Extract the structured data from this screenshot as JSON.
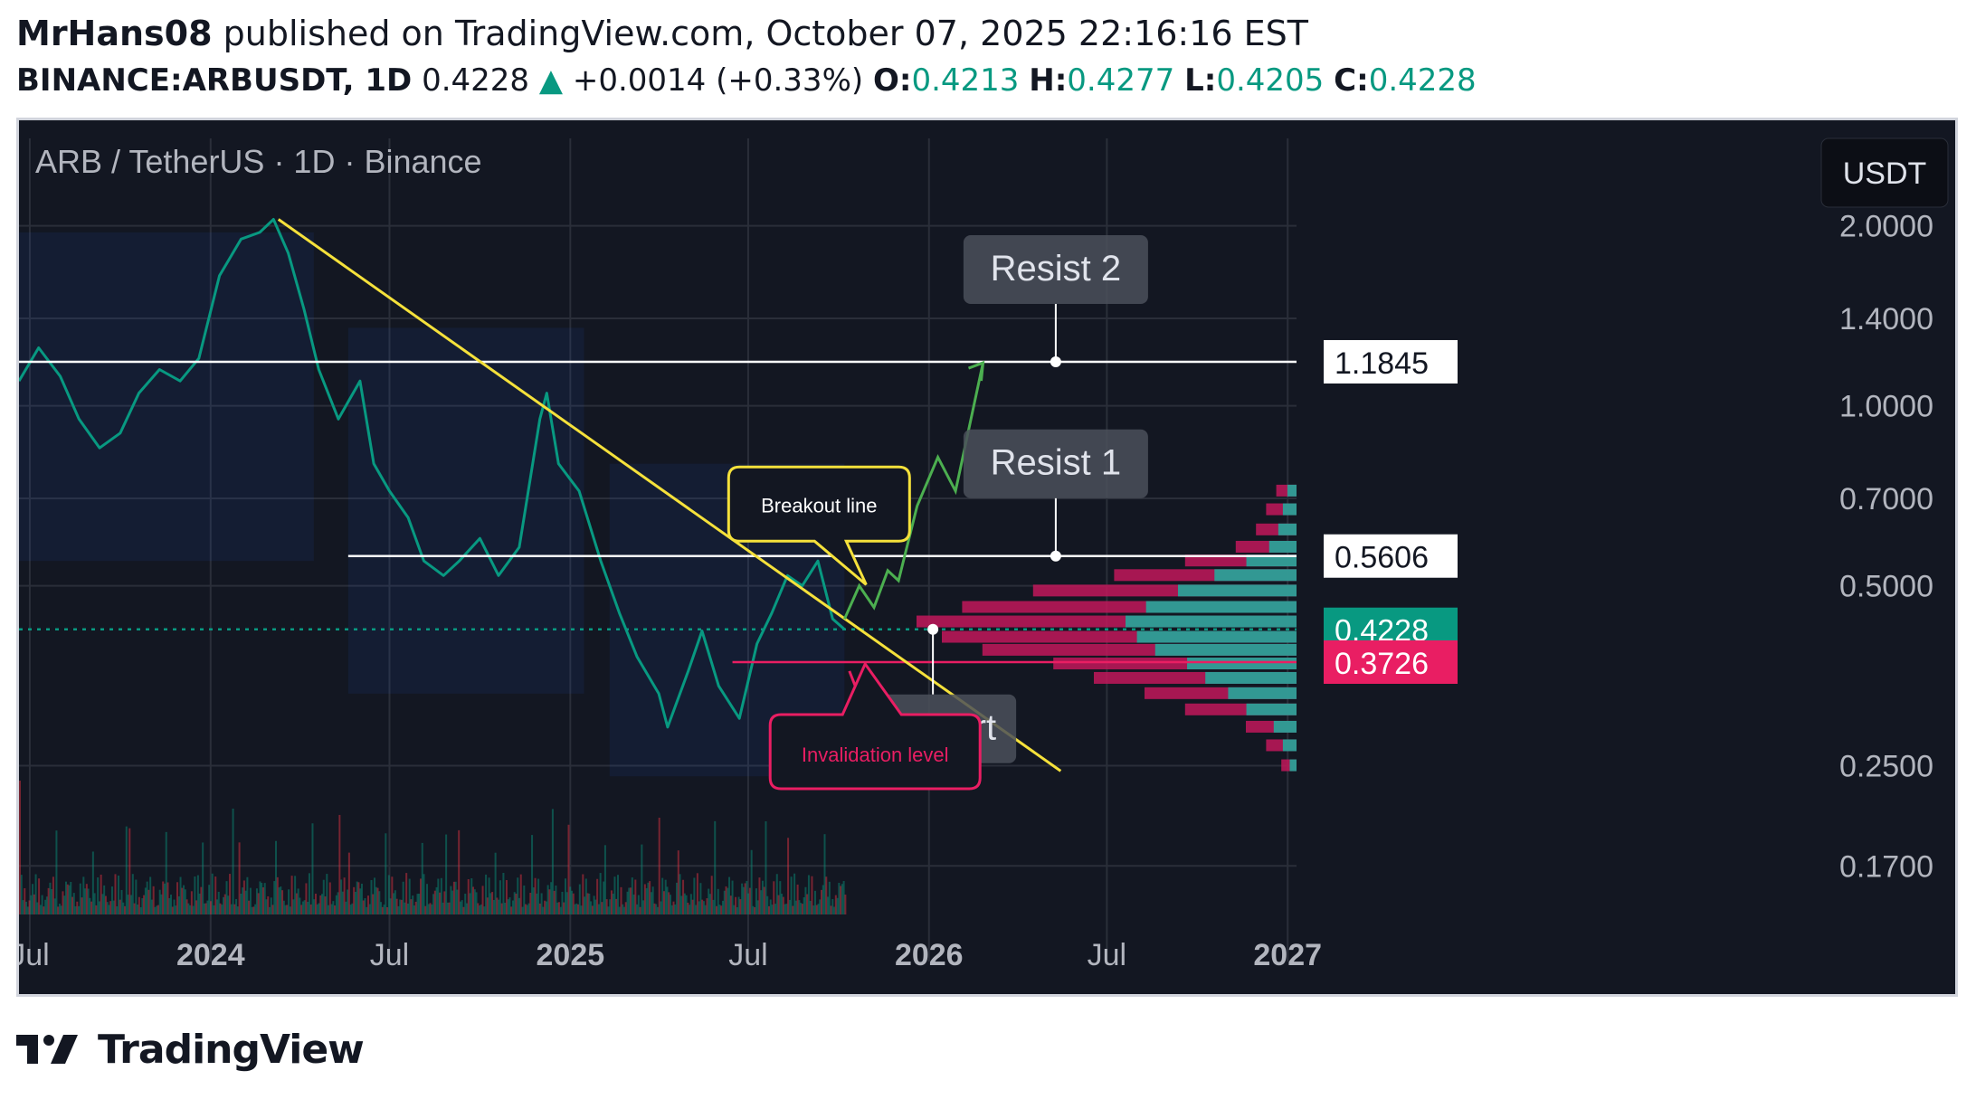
{
  "header": {
    "author": "MrHans08",
    "published_text": "published on TradingView.com, October 07, 2025 22:16:16 EST",
    "symbol": "BINANCE:ARBUSDT, 1D",
    "last": "0.4228",
    "change": "+0.0014 (+0.33%)",
    "open_label": "O:",
    "open": "0.4213",
    "high_label": "H:",
    "high": "0.4277",
    "low_label": "L:",
    "low": "0.4205",
    "close_label": "C:",
    "close": "0.4228"
  },
  "footer": {
    "brand": "TradingView"
  },
  "colors": {
    "background": "#131722",
    "up": "#089981",
    "down": "#f23645",
    "trendline": "#f5e13b",
    "projection": "#4caf50",
    "invalidation": "#e91e63",
    "profile_up": "#26a69a",
    "profile_down": "#c2185b"
  },
  "chart_data": {
    "type": "line",
    "title": "ARB / TetherUS · 1D · Binance",
    "currency": "USDT",
    "y_scale": "log",
    "ylim": [
      0.14,
      2.8
    ],
    "xlim": [
      "2023-06-20",
      "2027-01-10"
    ],
    "x_tick_labels": [
      {
        "date": "2023-07-01",
        "label": "Jul",
        "bold": false
      },
      {
        "date": "2024-01-01",
        "label": "2024",
        "bold": true
      },
      {
        "date": "2024-07-01",
        "label": "Jul",
        "bold": false
      },
      {
        "date": "2025-01-01",
        "label": "2025",
        "bold": true
      },
      {
        "date": "2025-07-01",
        "label": "Jul",
        "bold": false
      },
      {
        "date": "2026-01-01",
        "label": "2026",
        "bold": true
      },
      {
        "date": "2026-07-01",
        "label": "Jul",
        "bold": false
      },
      {
        "date": "2027-01-01",
        "label": "2027",
        "bold": true
      }
    ],
    "y_tick_labels": [
      "2.0000",
      "1.4000",
      "1.0000",
      "0.7000",
      "0.5000",
      "0.2500",
      "0.1700"
    ],
    "y_tick_values": [
      2.0,
      1.4,
      1.0,
      0.7,
      0.5,
      0.25,
      0.17
    ],
    "price_series": {
      "dates": [
        "2023-06-20",
        "2023-07-10",
        "2023-08-01",
        "2023-08-20",
        "2023-09-10",
        "2023-10-01",
        "2023-10-20",
        "2023-11-10",
        "2023-12-01",
        "2023-12-20",
        "2024-01-10",
        "2024-02-01",
        "2024-02-20",
        "2024-03-05",
        "2024-03-20",
        "2024-04-05",
        "2024-04-20",
        "2024-05-10",
        "2024-06-01",
        "2024-06-15",
        "2024-07-01",
        "2024-07-20",
        "2024-08-05",
        "2024-08-25",
        "2024-09-10",
        "2024-10-01",
        "2024-10-20",
        "2024-11-10",
        "2024-12-01",
        "2024-12-08",
        "2024-12-20",
        "2025-01-10",
        "2025-02-01",
        "2025-02-20",
        "2025-03-10",
        "2025-04-01",
        "2025-04-10",
        "2025-05-01",
        "2025-05-15",
        "2025-06-01",
        "2025-06-22",
        "2025-07-10",
        "2025-07-25",
        "2025-08-10",
        "2025-08-25",
        "2025-09-10",
        "2025-09-25",
        "2025-10-07"
      ],
      "close": [
        1.1,
        1.25,
        1.12,
        0.95,
        0.85,
        0.9,
        1.05,
        1.15,
        1.1,
        1.2,
        1.65,
        1.9,
        1.95,
        2.05,
        1.8,
        1.45,
        1.15,
        0.95,
        1.1,
        0.8,
        0.72,
        0.65,
        0.55,
        0.52,
        0.55,
        0.6,
        0.52,
        0.58,
        0.95,
        1.05,
        0.8,
        0.72,
        0.55,
        0.45,
        0.38,
        0.33,
        0.29,
        0.36,
        0.42,
        0.34,
        0.3,
        0.4,
        0.45,
        0.52,
        0.5,
        0.55,
        0.44,
        0.4228
      ]
    },
    "levels": [
      {
        "name": "Resist 2",
        "value": 1.1845,
        "label": "1.1845"
      },
      {
        "name": "Resist 1",
        "value": 0.5606,
        "label": "0.5606"
      },
      {
        "name": "Support",
        "value": 0.4228
      },
      {
        "name": "Invalidation level",
        "value": 0.3726,
        "label": "0.3726"
      }
    ],
    "current_price": {
      "value": 0.4228,
      "label": "0.4228"
    },
    "trendline": {
      "start": [
        "2024-03-10",
        2.05
      ],
      "end": [
        "2026-05-15",
        0.245
      ]
    },
    "projection": {
      "dates": [
        "2025-10-07",
        "2025-10-22",
        "2025-11-06",
        "2025-11-20",
        "2025-12-01",
        "2025-12-20",
        "2026-01-10",
        "2026-01-28",
        "2026-02-25"
      ],
      "values": [
        0.44,
        0.5,
        0.46,
        0.53,
        0.51,
        0.68,
        0.82,
        0.72,
        1.18
      ]
    },
    "annotations": [
      {
        "text": "Breakout line",
        "date": "2025-10-18",
        "value": 0.52,
        "style": "callout-yellow"
      },
      {
        "text": "Resist 2",
        "date": "2026-05-10",
        "value": 1.1845,
        "style": "label"
      },
      {
        "text": "Resist 1",
        "date": "2026-05-10",
        "value": 0.5606,
        "style": "label"
      },
      {
        "text": "Support",
        "date": "2026-01-05",
        "value": 0.4228,
        "style": "label"
      },
      {
        "text": "Invalidation level",
        "date": "2025-09-12",
        "value": 0.3726,
        "style": "callout-red"
      }
    ]
  }
}
